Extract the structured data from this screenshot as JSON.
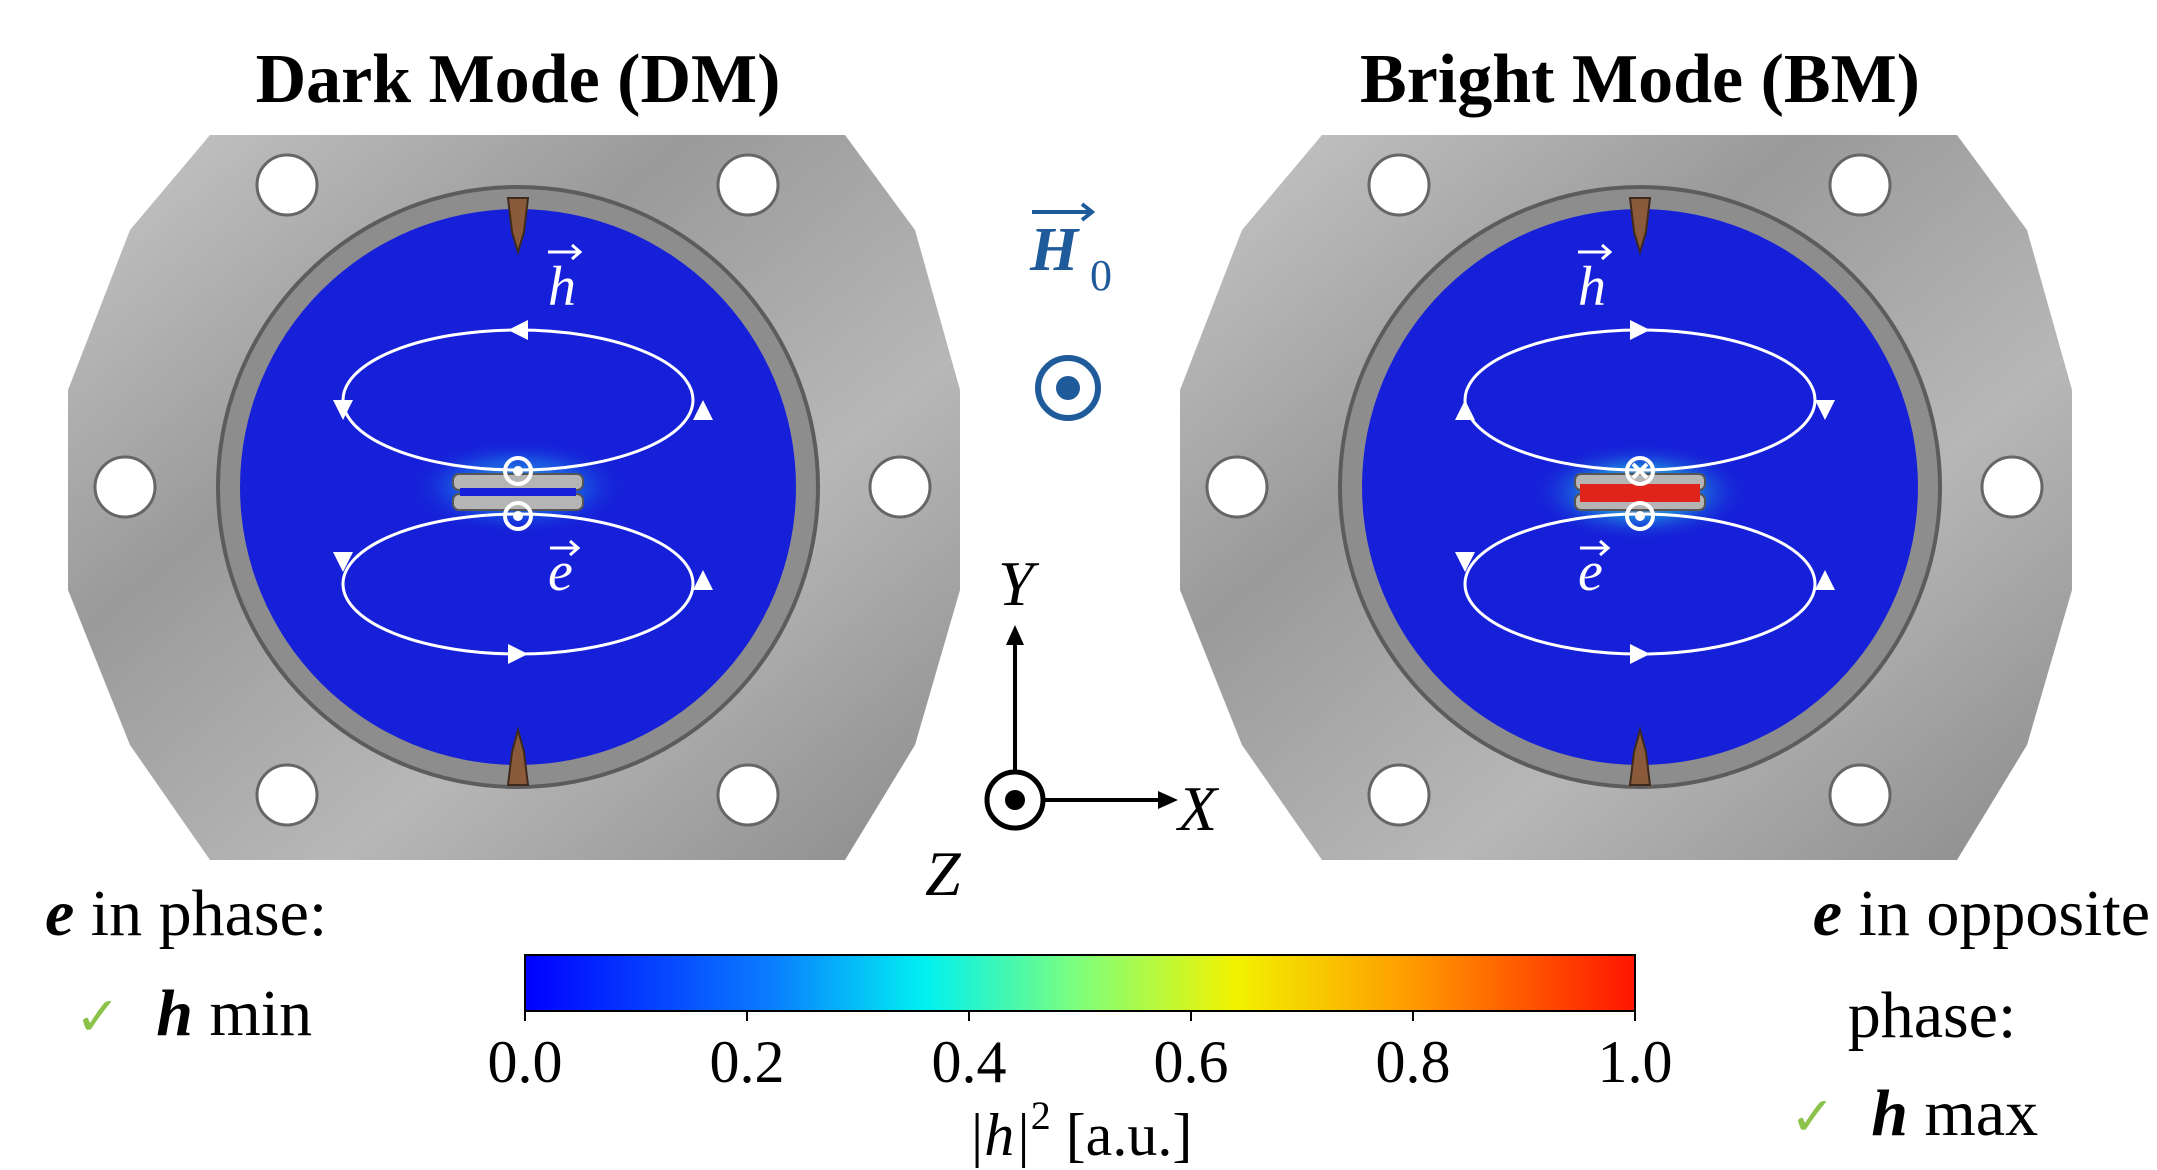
{
  "titles": {
    "left": "Dark Mode (DM)",
    "right": "Bright Mode (BM)"
  },
  "field_labels": {
    "h": "h",
    "e": "e",
    "H0": "H",
    "H0_sub": "0"
  },
  "axes": {
    "x": "X",
    "y": "Y",
    "z": "Z"
  },
  "captions": {
    "left_line1_bold": "e",
    "left_line1_rest": " in phase:",
    "left_line2_check": "✓",
    "left_line2_bold": "h",
    "left_line2_rest": " min",
    "right_line1_bold": "e",
    "right_line1_rest": " in opposite",
    "right_line2": "phase:",
    "right_line3_check": "✓",
    "right_line3_bold": "h",
    "right_line3_rest": " max"
  },
  "colorbar": {
    "ticks": [
      "0.0",
      "0.2",
      "0.4",
      "0.6",
      "0.8",
      "1.0"
    ],
    "label_prefix": "|h|",
    "label_sup": "2",
    "label_suffix": " [a.u.]"
  },
  "colors": {
    "field_blue": "#1620d8",
    "hot_red": "#e0241c",
    "vector_blue": "#1f5a9a",
    "check_green": "#8bc34a",
    "metal": "#a9a9a9"
  }
}
